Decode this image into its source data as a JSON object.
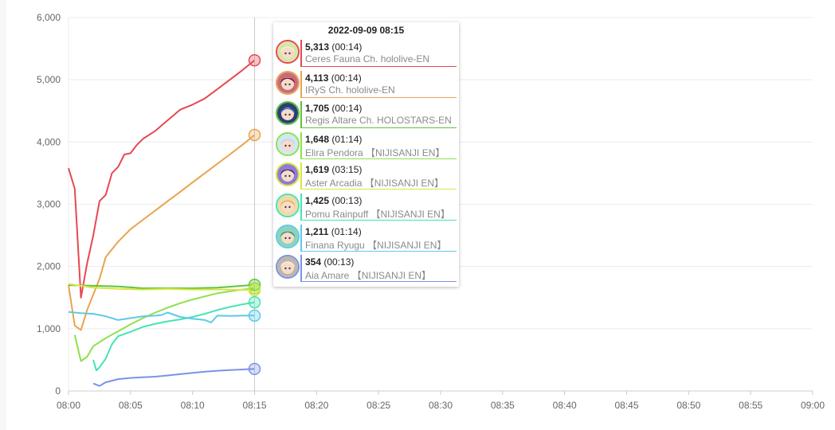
{
  "chart_data": {
    "type": "line",
    "x_axis": {
      "ticks": [
        "08:00",
        "08:05",
        "08:10",
        "08:15",
        "08:20",
        "08:25",
        "08:30",
        "08:35",
        "08:40",
        "08:45",
        "08:50",
        "08:55",
        "09:00"
      ],
      "range": [
        "08:00",
        "09:00"
      ]
    },
    "y_axis": {
      "ticks": [
        "0",
        "1,000",
        "2,000",
        "3,000",
        "4,000",
        "5,000",
        "6,000"
      ],
      "range": [
        0,
        6000
      ]
    },
    "grid": true,
    "crosshair_x": "08:15",
    "series": [
      {
        "name": "Ceres Fauna Ch. hololive-EN",
        "color": "#e8484f",
        "value": "5,313",
        "time": "(00:14)",
        "points": [
          [
            "08:00",
            3580
          ],
          [
            "08:00:30",
            3250
          ],
          [
            "08:01",
            1500
          ],
          [
            "08:01:30",
            2050
          ],
          [
            "08:02",
            2500
          ],
          [
            "08:02:30",
            3050
          ],
          [
            "08:03",
            3150
          ],
          [
            "08:03:30",
            3500
          ],
          [
            "08:04",
            3600
          ],
          [
            "08:04:30",
            3800
          ],
          [
            "08:05",
            3820
          ],
          [
            "08:05:30",
            3950
          ],
          [
            "08:06",
            4050
          ],
          [
            "08:07",
            4180
          ],
          [
            "08:08",
            4350
          ],
          [
            "08:09",
            4520
          ],
          [
            "08:09:30",
            4560
          ],
          [
            "08:10",
            4600
          ],
          [
            "08:11",
            4700
          ],
          [
            "08:12",
            4850
          ],
          [
            "08:13",
            5000
          ],
          [
            "08:14",
            5150
          ],
          [
            "08:15",
            5313
          ]
        ]
      },
      {
        "name": "IRyS Ch. hololive-EN",
        "color": "#e8a44f",
        "value": "4,113",
        "time": "(00:14)",
        "points": [
          [
            "08:00",
            1700
          ],
          [
            "08:00:30",
            1050
          ],
          [
            "08:01",
            980
          ],
          [
            "08:01:30",
            1300
          ],
          [
            "08:02",
            1550
          ],
          [
            "08:02:30",
            1800
          ],
          [
            "08:03",
            2150
          ],
          [
            "08:04",
            2400
          ],
          [
            "08:05",
            2600
          ],
          [
            "08:06",
            2750
          ],
          [
            "08:07",
            2900
          ],
          [
            "08:08",
            3050
          ],
          [
            "08:09",
            3200
          ],
          [
            "08:10",
            3350
          ],
          [
            "08:11",
            3500
          ],
          [
            "08:12",
            3650
          ],
          [
            "08:13",
            3800
          ],
          [
            "08:14",
            3950
          ],
          [
            "08:15",
            4113
          ]
        ]
      },
      {
        "name": "Regis Altare Ch. HOLOSTARS-EN",
        "color": "#5ec43d",
        "value": "1,705",
        "time": "(00:14)",
        "points": [
          [
            "08:00",
            1700
          ],
          [
            "08:02",
            1690
          ],
          [
            "08:04",
            1680
          ],
          [
            "08:06",
            1650
          ],
          [
            "08:08",
            1650
          ],
          [
            "08:10",
            1650
          ],
          [
            "08:12",
            1660
          ],
          [
            "08:14",
            1690
          ],
          [
            "08:15",
            1705
          ]
        ]
      },
      {
        "name": "Elira Pendora 【NIJISANJI EN】",
        "color": "#8de14d",
        "value": "1,648",
        "time": "(01:14)",
        "points": [
          [
            "08:00:30",
            900
          ],
          [
            "08:01",
            480
          ],
          [
            "08:01:30",
            550
          ],
          [
            "08:02",
            720
          ],
          [
            "08:03",
            850
          ],
          [
            "08:04",
            960
          ],
          [
            "08:05",
            1070
          ],
          [
            "08:06",
            1170
          ],
          [
            "08:07",
            1260
          ],
          [
            "08:08",
            1340
          ],
          [
            "08:09",
            1410
          ],
          [
            "08:10",
            1470
          ],
          [
            "08:11",
            1520
          ],
          [
            "08:12",
            1570
          ],
          [
            "08:13",
            1600
          ],
          [
            "08:14",
            1630
          ],
          [
            "08:15",
            1648
          ]
        ]
      },
      {
        "name": "Aster Arcadia 【NIJISANJI EN】",
        "color": "#d7e545",
        "value": "1,619",
        "time": "(03:15)",
        "points": [
          [
            "08:00",
            1720
          ],
          [
            "08:02",
            1660
          ],
          [
            "08:04",
            1640
          ],
          [
            "08:06",
            1630
          ],
          [
            "08:08",
            1640
          ],
          [
            "08:10",
            1630
          ],
          [
            "08:12",
            1630
          ],
          [
            "08:14",
            1625
          ],
          [
            "08:15",
            1619
          ]
        ]
      },
      {
        "name": "Pomu Rainpuff 【NIJISANJI EN】",
        "color": "#45e3b5",
        "value": "1,425",
        "time": "(00:13)",
        "points": [
          [
            "08:02",
            500
          ],
          [
            "08:02:15",
            330
          ],
          [
            "08:02:30",
            380
          ],
          [
            "08:03",
            520
          ],
          [
            "08:03:30",
            750
          ],
          [
            "08:04",
            880
          ],
          [
            "08:05",
            950
          ],
          [
            "08:06",
            1030
          ],
          [
            "08:07",
            1080
          ],
          [
            "08:08",
            1120
          ],
          [
            "08:09",
            1150
          ],
          [
            "08:10",
            1190
          ],
          [
            "08:11",
            1240
          ],
          [
            "08:12",
            1300
          ],
          [
            "08:13",
            1350
          ],
          [
            "08:14",
            1390
          ],
          [
            "08:15",
            1425
          ]
        ]
      },
      {
        "name": "Finana Ryugu 【NIJISANJI EN】",
        "color": "#5ec9e9",
        "value": "1,211",
        "time": "(01:14)",
        "points": [
          [
            "08:00",
            1270
          ],
          [
            "08:01",
            1250
          ],
          [
            "08:02",
            1240
          ],
          [
            "08:03",
            1200
          ],
          [
            "08:04",
            1140
          ],
          [
            "08:05",
            1170
          ],
          [
            "08:06",
            1200
          ],
          [
            "08:07",
            1210
          ],
          [
            "08:07:30",
            1220
          ],
          [
            "08:08",
            1260
          ],
          [
            "08:09",
            1190
          ],
          [
            "08:10",
            1160
          ],
          [
            "08:11",
            1140
          ],
          [
            "08:11:30",
            1100
          ],
          [
            "08:12",
            1210
          ],
          [
            "08:13",
            1205
          ],
          [
            "08:14",
            1210
          ],
          [
            "08:15",
            1211
          ]
        ]
      },
      {
        "name": "Aia Amare 【NIJISANJI EN】",
        "color": "#7b93e8",
        "value": "354",
        "time": "(00:13)",
        "points": [
          [
            "08:02",
            120
          ],
          [
            "08:02:30",
            80
          ],
          [
            "08:03",
            140
          ],
          [
            "08:04",
            190
          ],
          [
            "08:05",
            210
          ],
          [
            "08:06",
            220
          ],
          [
            "08:07",
            230
          ],
          [
            "08:08",
            250
          ],
          [
            "08:09",
            270
          ],
          [
            "08:10",
            290
          ],
          [
            "08:11",
            310
          ],
          [
            "08:12",
            325
          ],
          [
            "08:13",
            335
          ],
          [
            "08:14",
            345
          ],
          [
            "08:15",
            354
          ]
        ]
      }
    ]
  },
  "tooltip": {
    "title": "2022-09-09 08:15",
    "rows": [
      {
        "value": "5,313",
        "time": "(00:14)",
        "name": "Ceres Fauna Ch. hololive-EN",
        "color": "#e8484f",
        "avatar_bg": "#d7e6a8",
        "avatar_hair": "#f3f0c6",
        "avatar_icon": "avatar-ceres-fauna-icon"
      },
      {
        "value": "4,113",
        "time": "(00:14)",
        "name": "IRyS Ch. hololive-EN",
        "color": "#e8a44f",
        "avatar_bg": "#c96a7c",
        "avatar_hair": "#7a1f2e",
        "avatar_icon": "avatar-irys-icon"
      },
      {
        "value": "1,705",
        "time": "(00:14)",
        "name": "Regis Altare Ch. HOLOSTARS-EN",
        "color": "#5ec43d",
        "avatar_bg": "#2c3f73",
        "avatar_hair": "#3a6fb8",
        "avatar_icon": "avatar-regis-altare-icon"
      },
      {
        "value": "1,648",
        "time": "(01:14)",
        "name": "Elira Pendora 【NIJISANJI EN】",
        "color": "#8de14d",
        "avatar_bg": "#cfe8f3",
        "avatar_hair": "#b9d7ef",
        "avatar_icon": "avatar-elira-pendora-icon"
      },
      {
        "value": "1,619",
        "time": "(03:15)",
        "name": "Aster Arcadia 【NIJISANJI EN】",
        "color": "#d7e545",
        "avatar_bg": "#8f7bd1",
        "avatar_hair": "#3e2d7a",
        "avatar_icon": "avatar-aster-arcadia-icon"
      },
      {
        "value": "1,425",
        "time": "(00:13)",
        "name": "Pomu Rainpuff 【NIJISANJI EN】",
        "color": "#45e3b5",
        "avatar_bg": "#f2d9a8",
        "avatar_hair": "#e8b44a",
        "avatar_icon": "avatar-pomu-rainpuff-icon"
      },
      {
        "value": "1,211",
        "time": "(01:14)",
        "name": "Finana Ryugu 【NIJISANJI EN】",
        "color": "#5ec9e9",
        "avatar_bg": "#8fd3b7",
        "avatar_hair": "#2f9a7a",
        "avatar_icon": "avatar-finana-ryugu-icon"
      },
      {
        "value": "354",
        "time": "(00:13)",
        "name": "Aia Amare 【NIJISANJI EN】",
        "color": "#7b93e8",
        "avatar_bg": "#bfb6a8",
        "avatar_hair": "#f0ece4",
        "avatar_icon": "avatar-aia-amare-icon"
      }
    ]
  }
}
